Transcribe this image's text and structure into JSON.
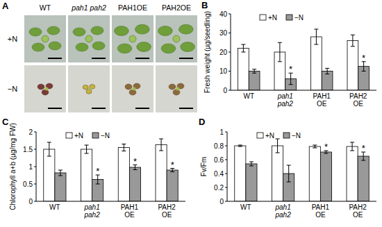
{
  "panel_a": {
    "title": "A",
    "columns": [
      "WT",
      "pah1 pah2",
      "PAH1OE",
      "PAH2OE"
    ],
    "rows": [
      "+N",
      "−N"
    ]
  },
  "chart_data": [
    {
      "type": "bar",
      "title": "B",
      "y_label": "Fresh weight (µg/seedling)",
      "categories": [
        "WT",
        "pah1 pah2",
        "PAH1 OE",
        "PAH2 OE"
      ],
      "series": [
        {
          "name": "+N",
          "color": "#ffffff",
          "values": [
            22,
            20,
            28,
            26
          ],
          "errors": [
            2,
            5,
            4,
            3
          ]
        },
        {
          "name": "−N",
          "color": "#999999",
          "values": [
            10,
            6,
            10,
            12.5
          ],
          "errors": [
            1,
            3,
            1.5,
            2.5
          ]
        }
      ],
      "annotations": [
        {
          "series": 1,
          "index": 1,
          "text": "*"
        },
        {
          "series": 1,
          "index": 3,
          "text": "*"
        }
      ],
      "ylim": [
        0,
        40
      ],
      "yticks": [
        0,
        10,
        20,
        30,
        40
      ],
      "legend": "top-left"
    },
    {
      "type": "bar",
      "title": "C",
      "y_label": "Chlorophyll a+b (µg/mg FW)",
      "categories": [
        "WT",
        "pah1 pah2",
        "PAH1 OE",
        "PAH2 OE"
      ],
      "series": [
        {
          "name": "+N",
          "color": "#ffffff",
          "values": [
            1.5,
            1.5,
            1.55,
            1.63
          ],
          "errors": [
            0.2,
            0.12,
            0.1,
            0.17
          ]
        },
        {
          "name": "−N",
          "color": "#999999",
          "values": [
            0.82,
            0.63,
            0.98,
            0.9
          ],
          "errors": [
            0.08,
            0.13,
            0.07,
            0.05
          ]
        }
      ],
      "annotations": [
        {
          "series": 1,
          "index": 1,
          "text": "*"
        },
        {
          "series": 1,
          "index": 2,
          "text": "*"
        },
        {
          "series": 1,
          "index": 3,
          "text": "*"
        }
      ],
      "ylim": [
        0,
        2
      ],
      "yticks": [
        0,
        0.5,
        1,
        1.5,
        2
      ],
      "legend": "top-left"
    },
    {
      "type": "bar",
      "title": "D",
      "y_label": "Fv/Fm",
      "categories": [
        "WT",
        "pah1 pah2",
        "PAH1 OE",
        "PAH2 OE"
      ],
      "series": [
        {
          "name": "+N",
          "color": "#ffffff",
          "values": [
            0.8,
            0.8,
            0.79,
            0.79
          ],
          "errors": [
            0.01,
            0.1,
            0.02,
            0.06
          ]
        },
        {
          "name": "−N",
          "color": "#999999",
          "values": [
            0.54,
            0.4,
            0.71,
            0.65
          ],
          "errors": [
            0.03,
            0.12,
            0.02,
            0.06
          ]
        }
      ],
      "annotations": [
        {
          "series": 1,
          "index": 2,
          "text": "*"
        },
        {
          "series": 1,
          "index": 3,
          "text": "*"
        }
      ],
      "ylim": [
        0,
        1
      ],
      "yticks": [
        0,
        0.2,
        0.4,
        0.6,
        0.8,
        1
      ],
      "legend": "top-left"
    }
  ]
}
